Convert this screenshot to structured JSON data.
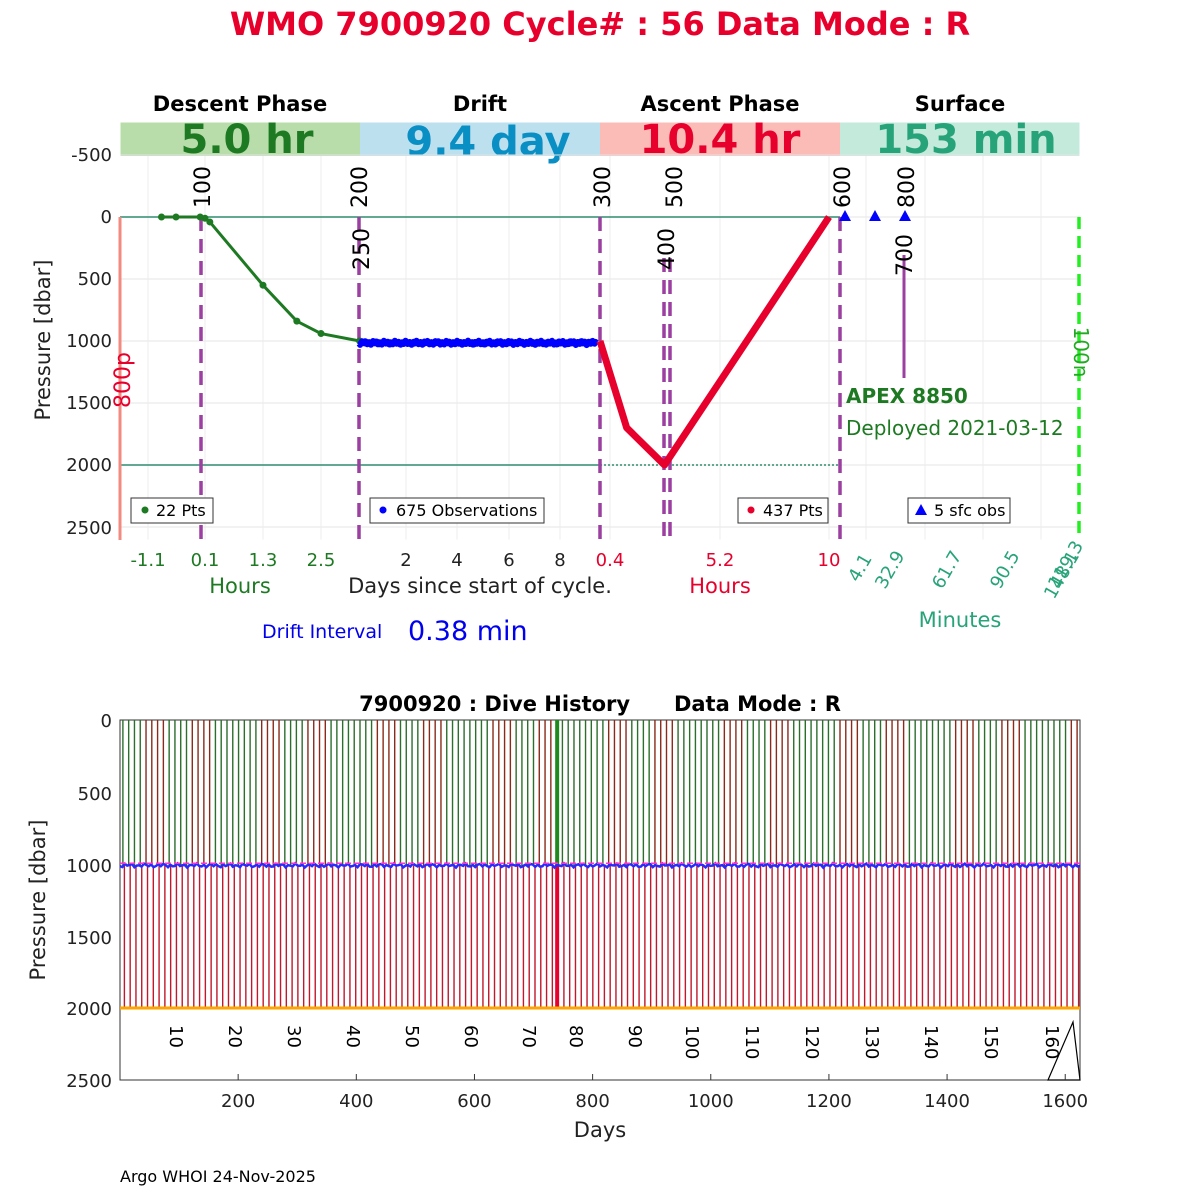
{
  "header": {
    "title": "WMO 7900920   Cycle# : 56   Data Mode : R"
  },
  "phases": [
    {
      "name": "Descent Phase",
      "duration": "5.0 hr",
      "band_color": "#b8dcaa",
      "text_color": "#1e7a22"
    },
    {
      "name": "Drift",
      "duration": "9.4 day",
      "band_color": "#bde0ee",
      "text_color": "#0a8fc4"
    },
    {
      "name": "Ascent Phase",
      "duration": "10.4 hr",
      "band_color": "#fbbcb8",
      "text_color": "#e8002d"
    },
    {
      "name": "Surface",
      "duration": "153 min",
      "band_color": "#c3eadb",
      "text_color": "#27a37a"
    }
  ],
  "legends": {
    "descent": "22 Pts",
    "drift": "675 Observations",
    "ascent": "437 Pts",
    "surface": "5 sfc obs"
  },
  "float_info": {
    "model": "APEX 8850",
    "deployed": "Deployed 2021-03-12"
  },
  "drift_interval": {
    "label": "Drift Interval",
    "value": "0.38 min"
  },
  "top_axis": {
    "ylabel": "Pressure [dbar]",
    "yticks": [
      "-500",
      "0",
      "500",
      "1000",
      "1500",
      "2000",
      "2500"
    ],
    "descent_xticks": [
      "-1.1",
      "0.1",
      "1.3",
      "2.5"
    ],
    "descent_xlabel": "Hours",
    "drift_xticks": [
      "2",
      "4",
      "6",
      "8"
    ],
    "drift_xlabel": "Days since start of cycle.",
    "ascent_xticks": [
      "0.4",
      "5.2",
      "10"
    ],
    "ascent_xlabel": "Hours",
    "surface_xticks": [
      "4.1",
      "32.9",
      "61.7",
      "90.5",
      "119.3",
      "148.1"
    ],
    "surface_xlabel": "Minutes",
    "markers": [
      "100",
      "200",
      "250",
      "300",
      "400",
      "500",
      "600",
      "700",
      "800"
    ],
    "left_marker": "800p",
    "right_marker": "100n"
  },
  "bottom_axis": {
    "title": "7900920 : Dive History      Data Mode : R",
    "ylabel": "Pressure [dbar]",
    "xlabel": "Days",
    "yticks": [
      "0",
      "500",
      "1000",
      "1500",
      "2000",
      "2500"
    ],
    "xticks": [
      "200",
      "400",
      "600",
      "800",
      "1000",
      "1200",
      "1400",
      "1600"
    ],
    "cycle_labels": [
      "10",
      "20",
      "30",
      "40",
      "50",
      "60",
      "70",
      "80",
      "90",
      "100",
      "110",
      "120",
      "130",
      "140",
      "150",
      "160"
    ]
  },
  "footer": "Argo WHOI 24-Nov-2025",
  "chart_data": [
    {
      "type": "line",
      "series": [
        {
          "name": "22 Pts",
          "color": "#1e7a22",
          "x_hours": [
            -0.8,
            -0.5,
            0.0,
            0.1,
            0.2,
            1.3,
            2.0,
            2.5,
            3.3
          ],
          "pressure": [
            0,
            0,
            0,
            10,
            40,
            550,
            840,
            940,
            1000
          ]
        },
        {
          "name": "675 Observations",
          "color": "#0000ff",
          "x_days": [
            0.2,
            9.4
          ],
          "pressure": [
            1015,
            1015
          ]
        },
        {
          "name": "437 Pts",
          "color": "#e8002d",
          "x_hours": [
            0.0,
            1.2,
            2.9,
            5.2,
            10.3
          ],
          "pressure": [
            1000,
            1700,
            2000,
            1380,
            0
          ]
        },
        {
          "name": "5 sfc obs",
          "color": "#0000ff",
          "x_minutes": [
            2,
            32,
            62
          ],
          "pressure": [
            0,
            0,
            0
          ]
        }
      ],
      "ylim": [
        -700,
        2600
      ]
    },
    {
      "type": "line",
      "title": "7900920 : Dive History      Data Mode : R",
      "xlabel": "Days",
      "ylabel": "Pressure [dbar]",
      "xlim": [
        0,
        1625
      ],
      "ylim": [
        0,
        2500
      ],
      "cycles": 166,
      "drift_pressure": 1010,
      "profile_pressure": 2000
    }
  ]
}
